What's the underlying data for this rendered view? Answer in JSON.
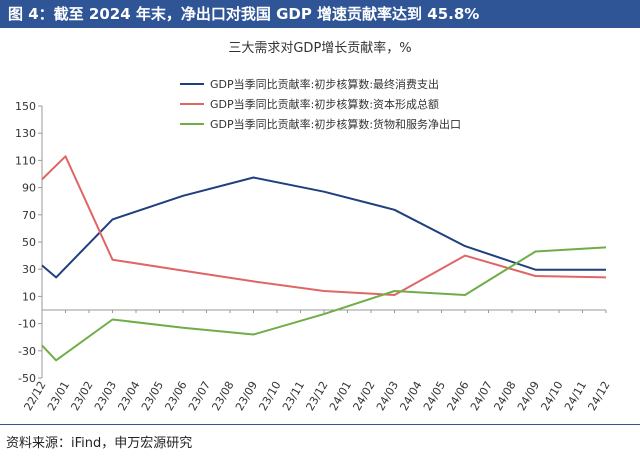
{
  "header": {
    "title": "图 4：截至 2024 年末，净出口对我国 GDP 增速贡献率达到 45.8%"
  },
  "source": "资料来源：iFind，申万宏源研究",
  "colors": {
    "header_bg": "#2f5597",
    "series": [
      "#1f3f7f",
      "#e06666",
      "#70ad47"
    ]
  },
  "chart_data": {
    "type": "line",
    "title": "三大需求对GDP增长贡献率，%",
    "xlabel": "",
    "ylabel": "",
    "ylim": [
      -50,
      150
    ],
    "yticks": [
      -50,
      -30,
      -10,
      10,
      30,
      50,
      70,
      90,
      110,
      130,
      150
    ],
    "grid": false,
    "legend_position": "top-right",
    "x": [
      "22/12",
      "23/01",
      "23/02",
      "23/03",
      "23/04",
      "23/05",
      "23/06",
      "23/07",
      "23/08",
      "23/09",
      "23/10",
      "23/11",
      "23/12",
      "24/01",
      "24/02",
      "24/03",
      "24/04",
      "24/05",
      "24/06",
      "24/07",
      "24/08",
      "24/09",
      "24/10",
      "24/11",
      "24/12"
    ],
    "series": [
      {
        "name": "GDP当季同比贡献率:初步核算数:最终消费支出",
        "color": "#1f3f7f",
        "points": [
          {
            "x": "22/12",
            "y": 32.8
          },
          {
            "x": "22/12",
            "y": 24
          },
          {
            "x": "23/03",
            "y": 66.6
          },
          {
            "x": "23/06",
            "y": 84
          },
          {
            "x": "23/09",
            "y": 97.4
          },
          {
            "x": "23/12",
            "y": 87
          },
          {
            "x": "24/03",
            "y": 73.7
          },
          {
            "x": "24/06",
            "y": 47
          },
          {
            "x": "24/09",
            "y": 29.6
          },
          {
            "x": "24/12",
            "y": 29.6
          }
        ]
      },
      {
        "name": "GDP当季同比贡献率:初步核算数:资本形成总额",
        "color": "#e06666",
        "points": [
          {
            "x": "22/12",
            "y": 96
          },
          {
            "x": "23/01",
            "y": 113
          },
          {
            "x": "23/03",
            "y": 37
          },
          {
            "x": "23/06",
            "y": 29
          },
          {
            "x": "23/09",
            "y": 21
          },
          {
            "x": "23/12",
            "y": 14
          },
          {
            "x": "24/03",
            "y": 11
          },
          {
            "x": "24/06",
            "y": 40
          },
          {
            "x": "24/09",
            "y": 25
          },
          {
            "x": "24/12",
            "y": 24
          }
        ]
      },
      {
        "name": "GDP当季同比贡献率:初步核算数:货物和服务净出口",
        "color": "#70ad47",
        "points": [
          {
            "x": "22/12",
            "y": -26
          },
          {
            "x": "22/12",
            "y": -37
          },
          {
            "x": "23/03",
            "y": -7
          },
          {
            "x": "23/06",
            "y": -13
          },
          {
            "x": "23/09",
            "y": -18
          },
          {
            "x": "23/12",
            "y": -3
          },
          {
            "x": "24/03",
            "y": 14
          },
          {
            "x": "24/06",
            "y": 11
          },
          {
            "x": "24/09",
            "y": 43
          },
          {
            "x": "24/12",
            "y": 46
          }
        ]
      }
    ]
  }
}
